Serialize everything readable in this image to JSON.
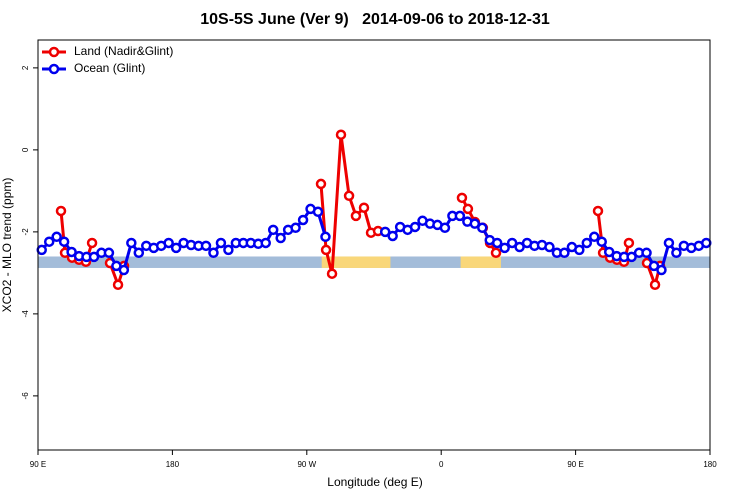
{
  "chart_data": {
    "type": "line",
    "title": "10S-5S June (Ver 9)   2014-09-06 to 2018-12-31",
    "xlabel": "Longitude (deg E)",
    "ylabel": "XCO2 - MLO trend (ppm)",
    "xlim": [
      90,
      540
    ],
    "ylim": [
      -7.32,
      2.68
    ],
    "xticks": [
      {
        "value": 90,
        "label": "90 E"
      },
      180,
      {
        "value": 270,
        "label": "90 W"
      },
      {
        "value": 360,
        "label": "0"
      },
      {
        "value": 450,
        "label": "90 E"
      },
      {
        "value": 540,
        "label": "180"
      }
    ],
    "yticks": [
      2,
      0,
      -2,
      -4,
      -6
    ],
    "legend": "top-left",
    "surface_band": {
      "range": [
        -2.88,
        -2.6
      ],
      "segments": [
        {
          "x": [
            90,
            540
          ],
          "color": "#a3bcd9"
        },
        {
          "x": [
            280,
            326
          ],
          "color": "#f9d77a"
        },
        {
          "x": [
            373,
            400
          ],
          "color": "#f9d77a"
        }
      ]
    },
    "series": [
      {
        "name": "Land (Nadir&Glint)",
        "color": "#ee0000",
        "x": [
          105.4,
          108.1,
          112.8,
          117.5,
          122.1,
          126.2,
          null,
          138.2,
          143.6,
          147.6,
          null,
          279.5,
          282.9,
          286.9,
          292.9,
          298.3,
          302.9,
          308.3,
          313,
          317.7,
          null,
          373.9,
          377.9,
          382.6,
          387.9,
          392.7,
          396.7,
          null,
          465,
          468.4,
          473.1,
          477.7,
          482.4,
          485.7,
          null,
          497.8,
          503.2,
          506.5
        ],
        "values": [
          -1.49,
          -2.51,
          -2.63,
          -2.68,
          -2.73,
          -2.27,
          null,
          -2.76,
          -3.29,
          -2.83,
          null,
          -0.83,
          -2.44,
          -3.02,
          0.37,
          -1.12,
          -1.61,
          -1.41,
          -2.02,
          -1.98,
          null,
          -1.17,
          -1.44,
          -1.76,
          -1.9,
          -2.27,
          -2.51,
          null,
          -1.49,
          -2.51,
          -2.63,
          -2.68,
          -2.73,
          -2.27,
          null,
          -2.76,
          -3.29,
          -2.83
        ]
      },
      {
        "name": "Ocean (Glint)",
        "color": "#0000ee",
        "x": [
          92.5,
          97.5,
          102.5,
          107.5,
          112.5,
          117.5,
          122.5,
          127.5,
          132.5,
          137.5,
          142.5,
          147.5,
          152.5,
          157.5,
          162.5,
          167.5,
          172.5,
          177.5,
          182.5,
          187.5,
          192.5,
          197.5,
          202.5,
          207.5,
          212.5,
          217.5,
          222.5,
          227.5,
          232.5,
          237.5,
          242.5,
          247.5,
          252.5,
          257.5,
          262.5,
          267.5,
          272.5,
          277.5,
          282.5,
          null,
          322.5,
          327.5,
          332.5,
          337.5,
          342.5,
          347.5,
          352.5,
          357.5,
          362.5,
          367.5,
          372.5,
          377.5,
          382.5,
          387.5,
          392.5,
          397.5,
          402.5,
          407.5,
          412.5,
          417.5,
          422.5,
          427.5,
          432.5,
          437.5,
          442.5,
          447.5,
          452.5,
          457.5,
          462.5,
          467.5,
          472.5,
          477.5,
          482.5,
          487.5,
          492.5,
          497.5,
          502.5,
          507.5,
          512.5,
          517.5,
          522.5,
          527.5,
          532.5,
          537.5
        ],
        "values": [
          -2.44,
          -2.24,
          -2.12,
          -2.24,
          -2.49,
          -2.59,
          -2.61,
          -2.61,
          -2.51,
          -2.51,
          -2.83,
          -2.93,
          -2.27,
          -2.51,
          -2.34,
          -2.39,
          -2.34,
          -2.27,
          -2.39,
          -2.27,
          -2.32,
          -2.34,
          -2.34,
          -2.51,
          -2.27,
          -2.44,
          -2.27,
          -2.27,
          -2.27,
          -2.29,
          -2.27,
          -1.95,
          -2.15,
          -1.95,
          -1.9,
          -1.71,
          -1.44,
          -1.51,
          -2.12,
          null,
          -2.0,
          -2.1,
          -1.88,
          -1.95,
          -1.88,
          -1.73,
          -1.8,
          -1.83,
          -1.9,
          -1.61,
          -1.61,
          -1.75,
          -1.8,
          -1.9,
          -2.2,
          -2.27,
          -2.39,
          -2.27,
          -2.37,
          -2.27,
          -2.34,
          -2.32,
          -2.37,
          -2.51,
          -2.51,
          -2.37,
          -2.44,
          -2.27,
          -2.12,
          -2.24,
          -2.49,
          -2.59,
          -2.61,
          -2.61,
          -2.51,
          -2.51,
          -2.83,
          -2.93,
          -2.27,
          -2.51,
          -2.34,
          -2.39,
          -2.34,
          -2.27
        ]
      }
    ]
  }
}
